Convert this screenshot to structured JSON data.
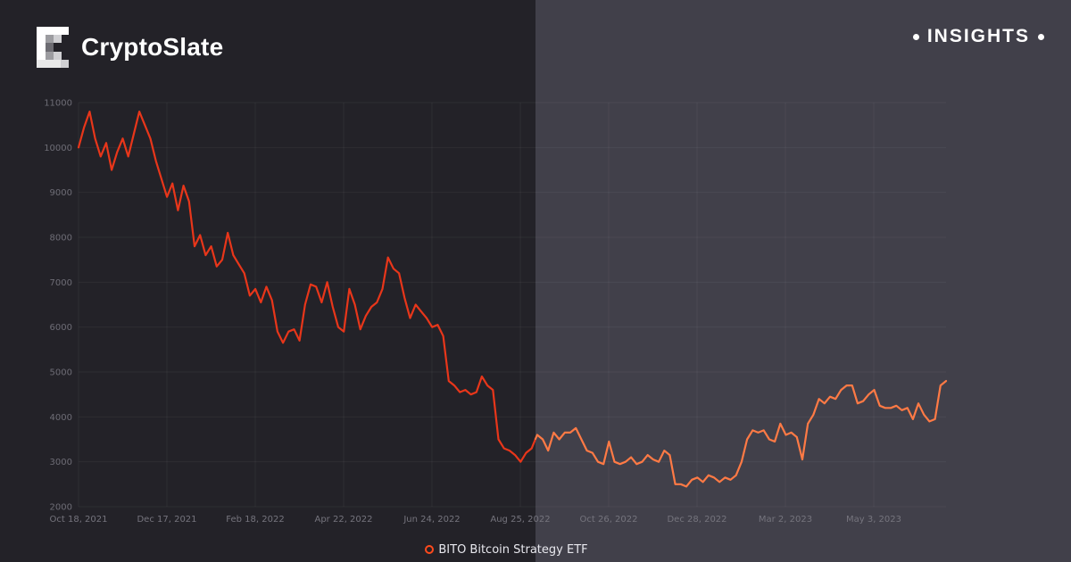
{
  "brand": {
    "name": "CryptoSlate",
    "logo_icon": "cryptoslate-logo-icon"
  },
  "badge": {
    "label": "INSIGHTS"
  },
  "colors": {
    "left_bg": "#232228",
    "right_bg": "#41404a",
    "line_left": "#e8361a",
    "line_right": "#ff7a45"
  },
  "chart_data": {
    "type": "line",
    "title": "",
    "xlabel": "",
    "ylabel": "",
    "ylim": [
      2000,
      11000
    ],
    "yticks": [
      2000,
      3000,
      4000,
      5000,
      6000,
      7000,
      8000,
      9000,
      10000,
      11000
    ],
    "xtick_labels": [
      "Oct 18, 2021",
      "Dec 17, 2021",
      "Feb 18, 2022",
      "Apr 22, 2022",
      "Jun 24, 2022",
      "Aug 25, 2022",
      "Oct 26, 2022",
      "Dec 28, 2022",
      "Mar 2, 2023",
      "May 3, 2023"
    ],
    "grid": true,
    "legend": "bottom-center",
    "series": [
      {
        "name": "BITO Bitcoin Strategy ETF",
        "values": [
          10000,
          10450,
          10800,
          10200,
          9800,
          10100,
          9500,
          9900,
          10200,
          9800,
          10300,
          10800,
          10500,
          10200,
          9700,
          9300,
          8900,
          9200,
          8600,
          9150,
          8800,
          7800,
          8050,
          7600,
          7800,
          7350,
          7500,
          8100,
          7600,
          7400,
          7200,
          6700,
          6850,
          6550,
          6900,
          6600,
          5900,
          5650,
          5900,
          5950,
          5700,
          6500,
          6950,
          6900,
          6550,
          7000,
          6450,
          6000,
          5900,
          6850,
          6500,
          5950,
          6250,
          6450,
          6550,
          6850,
          7550,
          7300,
          7200,
          6650,
          6200,
          6500,
          6350,
          6200,
          6000,
          6050,
          5800,
          4800,
          4700,
          4550,
          4600,
          4500,
          4550,
          4900,
          4700,
          4600,
          3500,
          3300,
          3250,
          3150,
          3000,
          3200,
          3300,
          3600,
          3500,
          3250,
          3650,
          3500,
          3650,
          3650,
          3750,
          3500,
          3250,
          3200,
          3000,
          2950,
          3450,
          3000,
          2950,
          3000,
          3100,
          2950,
          3000,
          3150,
          3050,
          3000,
          3250,
          3150,
          2500,
          2500,
          2450,
          2600,
          2650,
          2550,
          2700,
          2650,
          2550,
          2650,
          2600,
          2700,
          3000,
          3500,
          3700,
          3650,
          3700,
          3500,
          3450,
          3850,
          3600,
          3650,
          3550,
          3050,
          3850,
          4050,
          4400,
          4300,
          4450,
          4400,
          4600,
          4700,
          4700,
          4300,
          4350,
          4500,
          4600,
          4250,
          4200,
          4200,
          4250,
          4150,
          4200,
          3950,
          4300,
          4050,
          3900,
          3950,
          4700,
          4800
        ]
      }
    ]
  }
}
